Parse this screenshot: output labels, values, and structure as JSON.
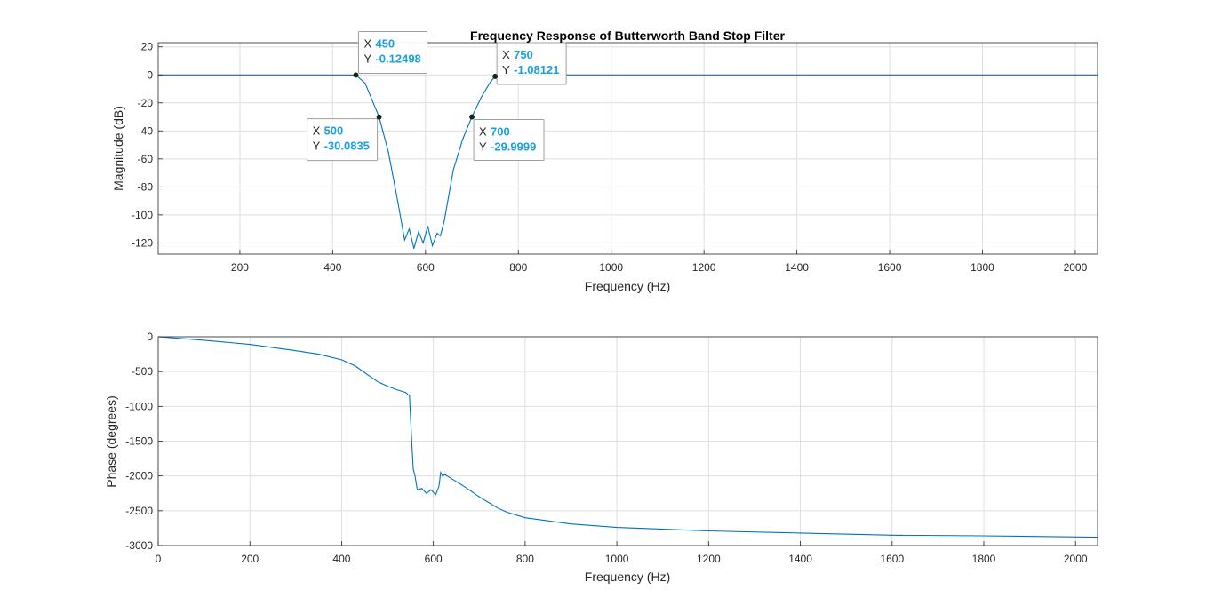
{
  "chart_data": [
    {
      "type": "line",
      "title": "Frequency Response of Butterworth Band Stop Filter",
      "xlabel": "Frequency (Hz)",
      "ylabel": "Magnitude (dB)",
      "xlim": [
        24,
        2048
      ],
      "ylim": [
        -128,
        23
      ],
      "xticks": [
        200,
        400,
        600,
        800,
        1000,
        1200,
        1400,
        1600,
        1800,
        2000
      ],
      "xtick_labels": [
        "200",
        "400",
        "600",
        "800",
        "1000",
        "1200",
        "1400",
        "1600",
        "1800",
        "2000"
      ],
      "yticks": [
        20,
        0,
        -20,
        -40,
        -60,
        -80,
        -100,
        -120
      ],
      "ytick_labels": [
        "20",
        "0",
        "-20",
        "-40",
        "-60",
        "-80",
        "-100",
        "-120"
      ],
      "grid": true,
      "series": [
        {
          "color": "#0072bd",
          "x": [
            24,
            400,
            430,
            450,
            470,
            500,
            520,
            540,
            548,
            555,
            565,
            575,
            585,
            595,
            605,
            615,
            625,
            632,
            640,
            660,
            680,
            700,
            720,
            740,
            750,
            770,
            800,
            1000,
            1500,
            2048
          ],
          "y": [
            0,
            0,
            -0.02,
            -0.12,
            -6,
            -30.08,
            -55,
            -90,
            -105,
            -118,
            -110,
            -124,
            -112,
            -120,
            -108,
            -122,
            -113,
            -115,
            -105,
            -68,
            -46,
            -30.0,
            -16,
            -5,
            -1.08,
            -0.3,
            -0.05,
            0,
            0,
            0
          ]
        }
      ],
      "datatips": [
        {
          "x": "450",
          "y": "-0.12498",
          "x_value": 450,
          "y_value": -0.12498
        },
        {
          "x": "500",
          "y": "-30.0835",
          "x_value": 500,
          "y_value": -30.0835
        },
        {
          "x": "750",
          "y": "-1.08121",
          "x_value": 750,
          "y_value": -1.08121
        },
        {
          "x": "700",
          "y": "-29.9999",
          "x_value": 700,
          "y_value": -29.9999
        }
      ]
    },
    {
      "type": "line",
      "title": "",
      "xlabel": "Frequency (Hz)",
      "ylabel": "Phase (degrees)",
      "xlim": [
        0,
        2048
      ],
      "ylim": [
        -3000,
        0
      ],
      "xticks": [
        0,
        200,
        400,
        600,
        800,
        1000,
        1200,
        1400,
        1600,
        1800,
        2000
      ],
      "xtick_labels": [
        "0",
        "200",
        "400",
        "600",
        "800",
        "1000",
        "1200",
        "1400",
        "1600",
        "1800",
        "2000"
      ],
      "yticks": [
        0,
        -500,
        -1000,
        -1500,
        -2000,
        -2500,
        -3000
      ],
      "ytick_labels": [
        "0",
        "-500",
        "-1000",
        "-1500",
        "-2000",
        "-2500",
        "-3000"
      ],
      "grid": true,
      "series": [
        {
          "color": "#0072bd",
          "x": [
            0,
            100,
            200,
            300,
            350,
            400,
            430,
            460,
            480,
            500,
            520,
            540,
            548,
            552,
            556,
            560,
            565,
            575,
            585,
            595,
            605,
            612,
            616,
            620,
            625,
            640,
            660,
            680,
            700,
            720,
            740,
            760,
            800,
            900,
            1000,
            1200,
            1400,
            1600,
            1800,
            2048
          ],
          "y": [
            0,
            -50,
            -110,
            -200,
            -250,
            -330,
            -420,
            -560,
            -650,
            -710,
            -760,
            -800,
            -850,
            -1400,
            -1900,
            -2000,
            -2200,
            -2180,
            -2250,
            -2200,
            -2270,
            -2150,
            -1950,
            -2000,
            -1980,
            -2040,
            -2120,
            -2210,
            -2300,
            -2380,
            -2460,
            -2520,
            -2600,
            -2690,
            -2740,
            -2790,
            -2820,
            -2850,
            -2860,
            -2880
          ]
        }
      ]
    }
  ]
}
